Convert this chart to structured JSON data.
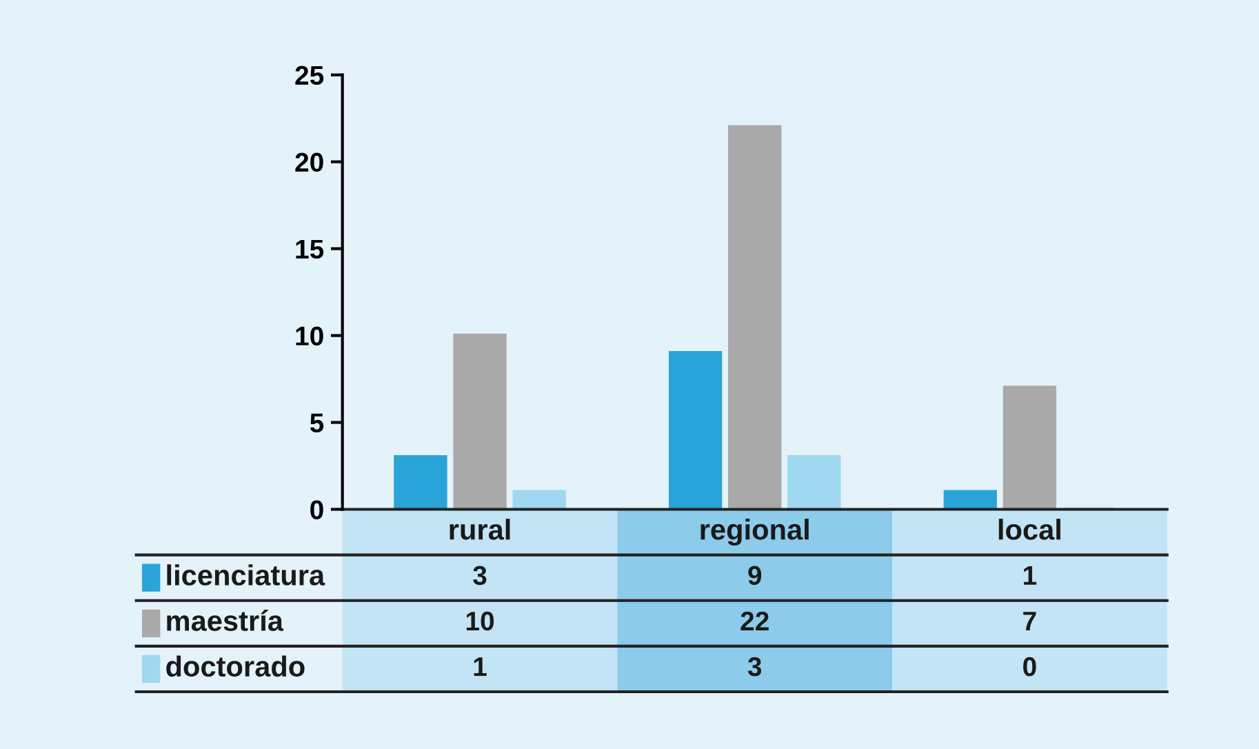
{
  "chart_data": {
    "type": "bar",
    "categories": [
      "rural",
      "regional",
      "local"
    ],
    "series": [
      {
        "name": "licenciatura",
        "color": "#2aa3d9",
        "values": [
          3,
          9,
          1
        ]
      },
      {
        "name": "maestría",
        "color": "#a9a9a9",
        "values": [
          10,
          22,
          7
        ]
      },
      {
        "name": "doctorado",
        "color": "#9fd8f0",
        "values": [
          1,
          3,
          0
        ]
      }
    ],
    "ylim": [
      0,
      25
    ],
    "yticks": [
      0,
      5,
      10,
      15,
      20,
      25
    ],
    "grid": false,
    "legend": "bottom left",
    "data_labels": true
  }
}
